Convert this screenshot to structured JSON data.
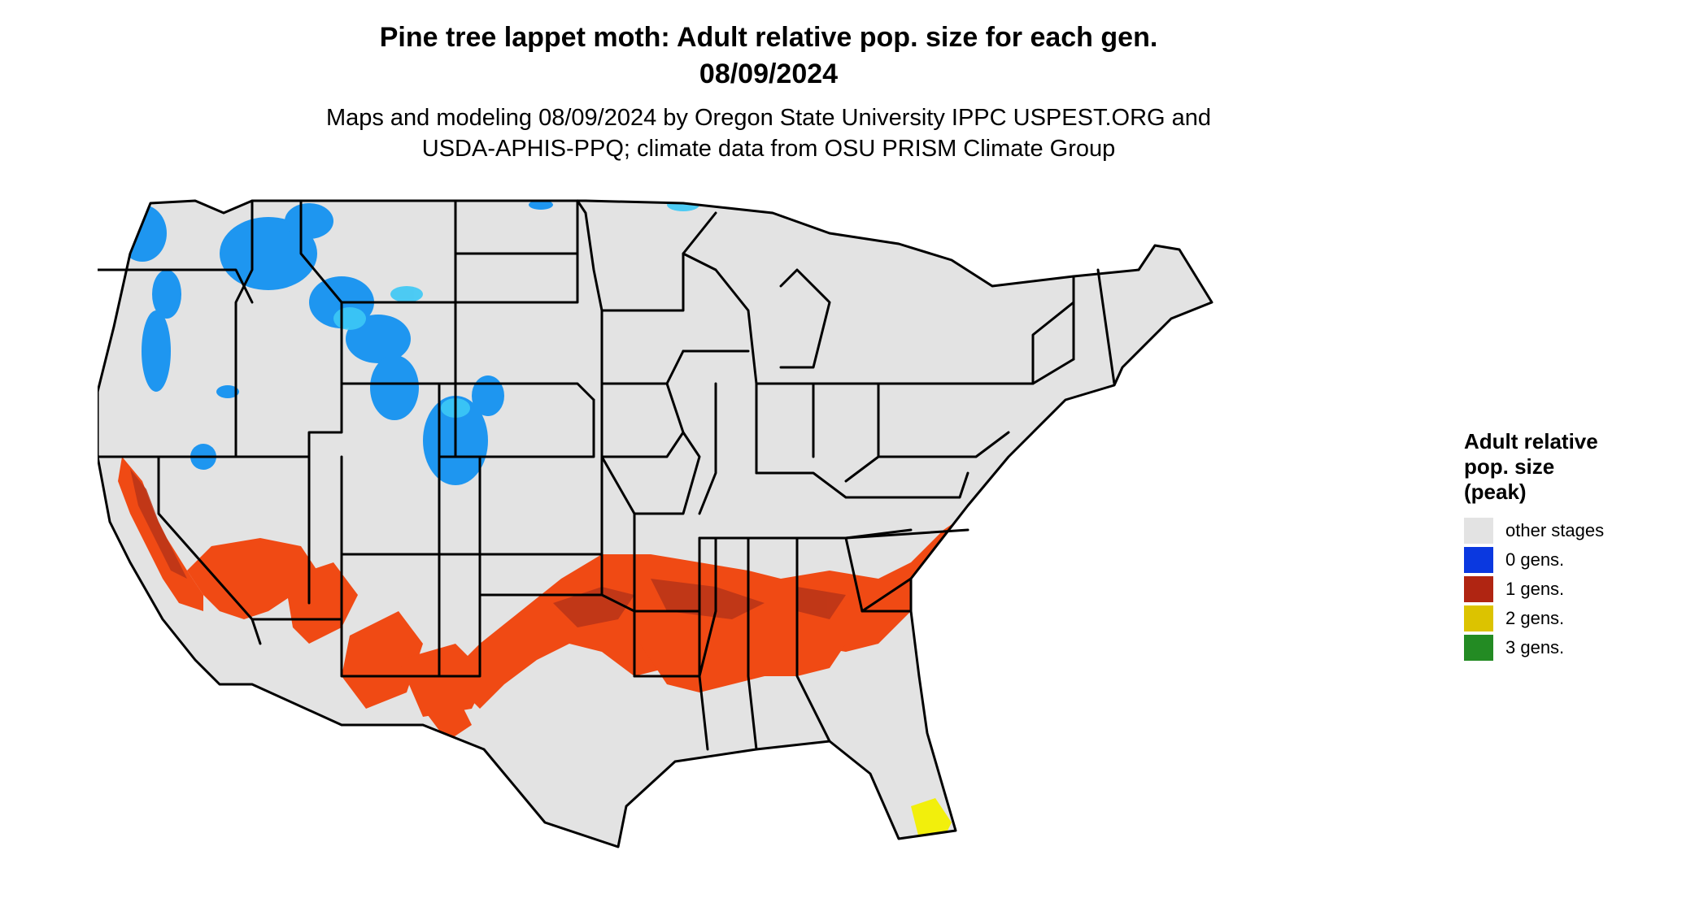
{
  "title": {
    "line1": "Pine tree lappet moth: Adult relative pop. size for each gen.",
    "line2": "08/09/2024"
  },
  "subtitle": {
    "line1": "Maps and modeling 08/09/2024 by Oregon State University IPPC USPEST.ORG and",
    "line2": "USDA-APHIS-PPQ; climate data from OSU PRISM Climate Group"
  },
  "map": {
    "base_color": "#e3e3e3",
    "border_color": "#000000",
    "zero_gen_fill": "#1e96f0",
    "zero_gen_light": "#3cc8f5",
    "one_gen_fill": "#f04a14",
    "one_gen_dark": "#b83418",
    "two_gen_fill": "#f2ef0c"
  },
  "legend": {
    "title_line1": "Adult relative",
    "title_line2": "pop. size",
    "title_line3": "(peak)",
    "items": [
      {
        "label": "other stages",
        "color": "#e3e3e3"
      },
      {
        "label": "0 gens.",
        "color": "#0a38e0"
      },
      {
        "label": "1 gens.",
        "color": "#b02512"
      },
      {
        "label": "2 gens.",
        "color": "#dcc300"
      },
      {
        "label": "3 gens.",
        "color": "#238b23"
      }
    ]
  }
}
